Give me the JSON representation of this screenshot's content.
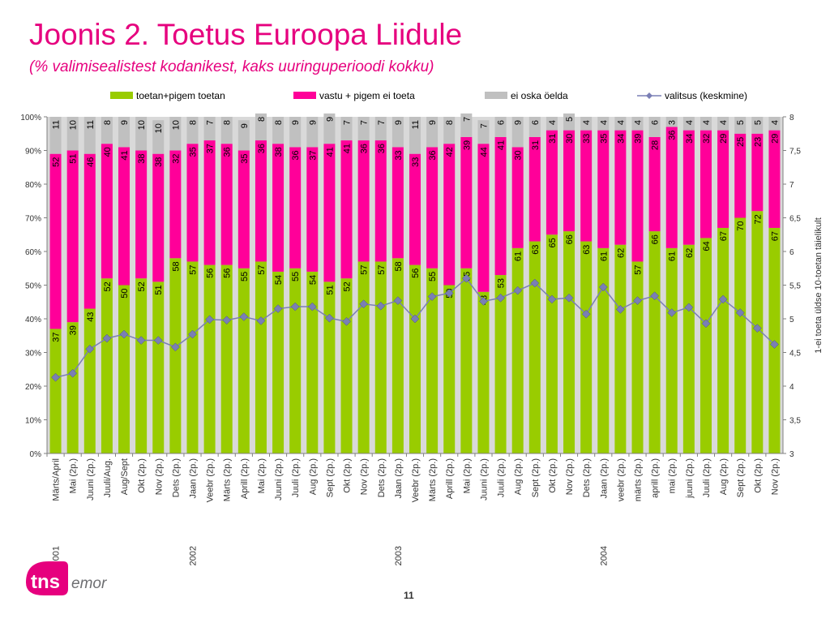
{
  "header": {
    "title": "Joonis 2. Toetus Euroopa Liidule",
    "subtitle": "(% valimisealistest kodanikest, kaks uuringuperioodi kokku)"
  },
  "footer": {
    "page_number": "11",
    "logo_brand": "tns",
    "logo_sub": "emor"
  },
  "colors": {
    "support": "#99cc00",
    "oppose": "#ff0099",
    "unknown": "#c0c0c0",
    "line": "#7a7fb5",
    "title": "#e6007e"
  },
  "chart_data": {
    "type": "bar",
    "stacked": true,
    "categories": [
      "Märts/April",
      "Mai (2p.)",
      "Juuni (2p.)",
      "Juuli/Aug.",
      "Aug/Sept",
      "Okt (2p.)",
      "Nov (2p.)",
      "Dets (2p.)",
      "Jaan (2p.)",
      "Veebr (2p.)",
      "Märts (2p.)",
      "Aprill (2p.)",
      "Mai (2p.)",
      "Juuni (2p.)",
      "Juuli (2p.)",
      "Aug (2p.)",
      "Sept (2p.)",
      "Okt (2p.)",
      "Nov (2p.)",
      "Dets (2p.)",
      "Jaan (2p.)",
      "Veebr (2p.)",
      "Märts (2p.)",
      "Aprill (2p.)",
      "Mai (2p.)",
      "Juuni (2p.)",
      "Juuli (2p.)",
      "Aug (2p.)",
      "Sept (2p.)",
      "Okt (2p.)",
      "Nov (2p.)",
      "Dets (2p.)",
      "Jaan (2p.)",
      "veebr (2p.)",
      "märts (2p.)",
      "aprill (2p.)",
      "mai (2p.)",
      "juuni (2p.)",
      "Juuli (2p.)",
      "Aug (2p.)",
      "Sept (2p.)",
      "Okt (2p.)",
      "Nov (2p.)"
    ],
    "years": [
      {
        "label": "2001",
        "index": 0
      },
      {
        "label": "2002",
        "index": 8
      },
      {
        "label": "2003",
        "index": 20
      },
      {
        "label": "2004",
        "index": 32
      }
    ],
    "series": [
      {
        "name": "toetan+pigem toetan",
        "values": [
          37,
          39,
          43,
          52,
          50,
          52,
          51,
          58,
          57,
          56,
          56,
          55,
          57,
          54,
          55,
          54,
          51,
          52,
          57,
          57,
          58,
          56,
          55,
          50,
          55,
          48,
          53,
          61,
          63,
          65,
          66,
          63,
          61,
          62,
          57,
          66,
          61,
          62,
          64,
          67,
          70,
          72,
          67
        ]
      },
      {
        "name": "vastu + pigem ei toeta",
        "values": [
          52,
          51,
          46,
          40,
          41,
          38,
          38,
          32,
          35,
          37,
          36,
          35,
          36,
          38,
          36,
          37,
          41,
          41,
          36,
          36,
          33,
          33,
          36,
          42,
          39,
          44,
          41,
          30,
          31,
          31,
          30,
          33,
          35,
          34,
          39,
          28,
          36,
          34,
          32,
          29,
          25,
          23,
          29
        ]
      },
      {
        "name": "ei oska öelda",
        "values": [
          11,
          10,
          11,
          8,
          9,
          10,
          10,
          10,
          8,
          7,
          8,
          9,
          8,
          8,
          9,
          9,
          9,
          7,
          7,
          7,
          9,
          11,
          9,
          8,
          7,
          7,
          6,
          9,
          6,
          4,
          5,
          4,
          4,
          4,
          4,
          6,
          3,
          4,
          4,
          4,
          5,
          5,
          4
        ]
      },
      {
        "name": "valitsus (keskmine)",
        "axis": "right",
        "values": [
          4.13,
          4.19,
          4.55,
          4.71,
          4.77,
          4.68,
          4.68,
          4.58,
          4.77,
          4.99,
          4.98,
          5.03,
          4.97,
          5.15,
          5.18,
          5.18,
          5.01,
          4.96,
          5.22,
          5.19,
          5.27,
          5.0,
          5.33,
          5.38,
          5.6,
          5.26,
          5.31,
          5.42,
          5.53,
          5.29,
          5.31,
          5.07,
          5.47,
          5.14,
          5.27,
          5.34,
          5.09,
          5.17,
          4.93,
          5.29,
          5.09,
          4.86,
          4.62
        ]
      }
    ],
    "y_left": {
      "min": 0,
      "max": 100,
      "ticks": [
        "0%",
        "10%",
        "20%",
        "30%",
        "40%",
        "50%",
        "60%",
        "70%",
        "80%",
        "90%",
        "100%"
      ]
    },
    "y_right": {
      "min": 3,
      "max": 8,
      "ticks": [
        "3",
        "3,5",
        "4",
        "4,5",
        "5",
        "5,5",
        "6",
        "6,5",
        "7",
        "7,5",
        "8"
      ],
      "label": "1-ei toeta üldse  10-toetan täielikult"
    },
    "legend_position": "top",
    "grid": false
  }
}
